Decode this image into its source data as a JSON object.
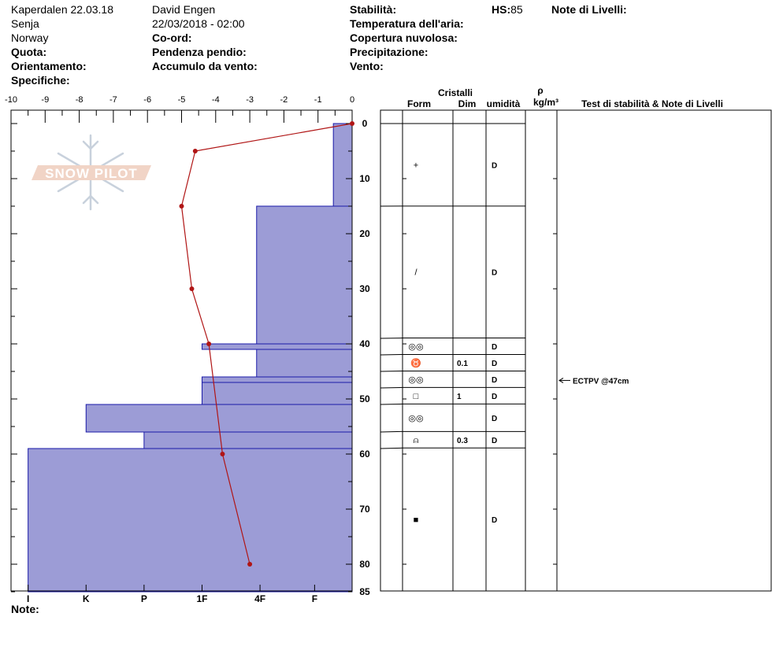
{
  "header": {
    "col1": [
      "Kaperdalen 22.03.18",
      "Senja",
      "Norway"
    ],
    "col1_labels": [
      "Quota:",
      "Orientamento:",
      "Specifiche:"
    ],
    "col2": [
      "David Engen",
      "22/03/2018 - 02:00"
    ],
    "col2_labels": [
      "Co-ord:",
      "Pendenza pendio:",
      "Accumulo da vento:"
    ],
    "col3_labels": [
      "Stabilità:",
      "Temperatura dell'aria:",
      "Copertura nuvolosa:",
      "Precipitazione:",
      "Vento:"
    ],
    "hs_label": "HS:",
    "hs_value": "85",
    "notes_label": "Note di Livelli:",
    "footer_note": "Note:"
  },
  "logo_text": "SNOW PILOT",
  "table_headers": {
    "cristalli": "Cristalli",
    "form": "Form",
    "dim": "Dim",
    "umidita": "umidità",
    "rho": "ρ",
    "density_unit": "kg/m³",
    "tests": "Test di stabilità & Note di Livelli"
  },
  "colors": {
    "hardness_fill": "#9c9cd6",
    "hardness_stroke": "#1a1aa8",
    "temp_line": "#b01515"
  },
  "chart_data": {
    "type": "snow-profile",
    "temp_axis": {
      "ticks": [
        "-10",
        "-9",
        "-8",
        "-7",
        "-6",
        "-5",
        "-4",
        "-3",
        "-2",
        "-1",
        "0"
      ],
      "range": [
        -10,
        0
      ]
    },
    "depth_axis": {
      "ticks": [
        "0",
        "10",
        "20",
        "30",
        "40",
        "50",
        "60",
        "70",
        "80"
      ],
      "bottom_label": "85",
      "range": [
        0,
        85
      ]
    },
    "hardness_axis": {
      "ticks": [
        "I",
        "K",
        "P",
        "1F",
        "4F",
        "F"
      ],
      "values": [
        9.5,
        7.8,
        6.1,
        4.4,
        2.7,
        1.1
      ]
    },
    "hardness_layers": [
      {
        "top": 0,
        "bottom": 15,
        "temp_equiv": -0.55
      },
      {
        "top": 15,
        "bottom": 40,
        "temp_equiv": -2.8
      },
      {
        "top": 40,
        "bottom": 41,
        "temp_equiv": -4.4
      },
      {
        "top": 41,
        "bottom": 46,
        "temp_equiv": -2.8
      },
      {
        "top": 46,
        "bottom": 47,
        "temp_equiv": -4.4
      },
      {
        "top": 47,
        "bottom": 51,
        "temp_equiv": -4.4
      },
      {
        "top": 51,
        "bottom": 56,
        "temp_equiv": -7.8
      },
      {
        "top": 56,
        "bottom": 59,
        "temp_equiv": -6.1
      },
      {
        "top": 59,
        "bottom": 85,
        "temp_equiv": -9.5
      }
    ],
    "temperature_profile": [
      {
        "depth": 0,
        "temp": 0
      },
      {
        "depth": 5,
        "temp": -4.6
      },
      {
        "depth": 15,
        "temp": -5.0
      },
      {
        "depth": 30,
        "temp": -4.7
      },
      {
        "depth": 40,
        "temp": -4.2
      },
      {
        "depth": 60,
        "temp": -3.8
      },
      {
        "depth": 80,
        "temp": -3.0
      }
    ],
    "layers": [
      {
        "top": 0,
        "bottom": 15,
        "form": "+",
        "dim": "",
        "wetness": "D"
      },
      {
        "top": 15,
        "bottom": 39,
        "form": "/",
        "dim": "",
        "wetness": "D"
      },
      {
        "top": 39,
        "bottom": 42,
        "form": "◎◎",
        "dim": "",
        "wetness": "D"
      },
      {
        "top": 42,
        "bottom": 45,
        "form": "♉",
        "dim": "0.1",
        "wetness": "D"
      },
      {
        "top": 45,
        "bottom": 48,
        "form": "◎◎",
        "dim": "",
        "wetness": "D"
      },
      {
        "top": 48,
        "bottom": 51,
        "form": "□",
        "dim": "1",
        "wetness": "D"
      },
      {
        "top": 51,
        "bottom": 56,
        "form": "◎◎",
        "dim": "",
        "wetness": "D"
      },
      {
        "top": 56,
        "bottom": 59,
        "form": "⍝",
        "dim": "0.3",
        "wetness": "D"
      },
      {
        "top": 59,
        "bottom": 85,
        "form": "■",
        "dim": "",
        "wetness": "D"
      }
    ],
    "tests": [
      {
        "depth": 47,
        "label": "ECTPV @47cm"
      }
    ]
  }
}
